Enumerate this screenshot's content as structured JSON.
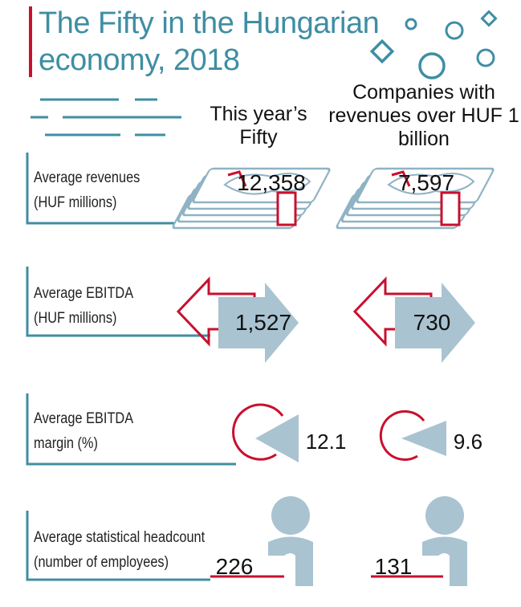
{
  "title": "The Fifty in the Hungarian economy, 2018",
  "columns": {
    "a": "This year’s Fifty",
    "b": "Companies with revenues over HUF 1 billion"
  },
  "rows": [
    {
      "label_1": "Average revenues",
      "label_2": "(HUF millions)",
      "a": "12,358",
      "b": "7,597",
      "icon": "money-stack-icon"
    },
    {
      "label_1": "Average EBITDA",
      "label_2": "(HUF millions)",
      "a": "1,527",
      "b": "730",
      "icon": "arrow-icon"
    },
    {
      "label_1": "Average EBITDA",
      "label_2": "margin (%)",
      "a": "12.1",
      "b": "9.6",
      "icon": "pie-slice-icon"
    },
    {
      "label_1": "Average statistical headcount",
      "label_2": "(number of employees)",
      "a": "226",
      "b": "131",
      "icon": "person-icon"
    }
  ],
  "colors": {
    "teal": "#3f8ea3",
    "red": "#c8102e",
    "light_blue": "#a9c3d1",
    "text": "#111111"
  }
}
